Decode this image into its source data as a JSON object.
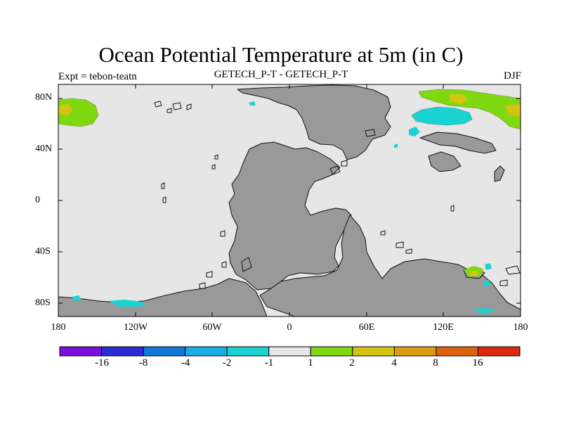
{
  "title": "Ocean Potential Temperature at 5m (in C)",
  "subtitle_left": "Expt = tebon-teatn",
  "subtitle_center": "GETECH_P-T - GETECH_P-T",
  "subtitle_right": "DJF",
  "lat_ticks": [
    "80N",
    "40N",
    "0",
    "40S",
    "80S"
  ],
  "lon_ticks": [
    "180",
    "120W",
    "60W",
    "0",
    "60E",
    "120E",
    "180"
  ],
  "colorbar": {
    "labels": [
      "-16",
      "-8",
      "-4",
      "-2",
      "-1",
      "1",
      "2",
      "4",
      "8",
      "16"
    ],
    "colors": [
      "#7a10d8",
      "#2a2ad6",
      "#1277d6",
      "#1aaee0",
      "#19d3d3",
      "#e6e6e6",
      "#80d810",
      "#d4c310",
      "#dc9b10",
      "#dc6410",
      "#dc2a10"
    ]
  },
  "colors": {
    "land": "#999999",
    "ocean_neutral": "#e6e6e6"
  }
}
